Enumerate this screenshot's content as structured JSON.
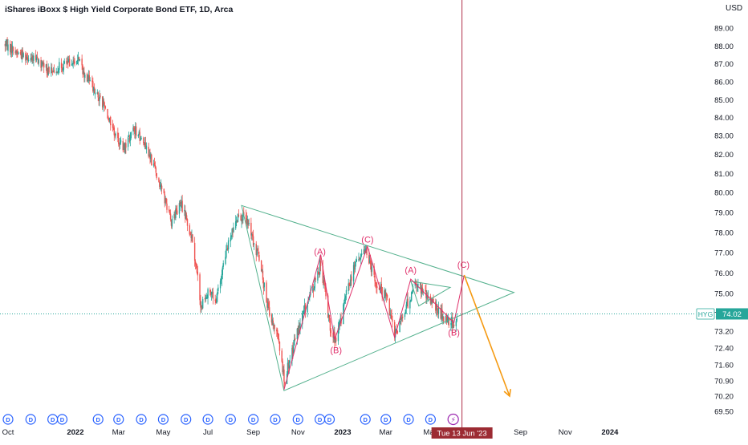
{
  "header": {
    "title": "iShares iBoxx $ High Yield Corporate Bond ETF, 1D, Arca",
    "currency": "USD"
  },
  "colors": {
    "up": "#26a69a",
    "down": "#ef5350",
    "wave_line": "#e0306b",
    "triangle": "#52b08c",
    "crosshair": "#b0304a",
    "projection": "#f59a12",
    "event_badge": "#2962ff"
  },
  "chart_data": {
    "type": "candlestick",
    "symbol": "HYG",
    "title": "iShares iBoxx $ High Yield Corporate Bond ETF, 1D, Arca",
    "ylabel": "USD",
    "ylim": [
      69.2,
      89.8
    ],
    "y_ticks": [
      "89.00",
      "88.00",
      "87.00",
      "86.00",
      "85.00",
      "84.00",
      "83.00",
      "82.00",
      "81.00",
      "80.00",
      "79.00",
      "78.00",
      "77.00",
      "76.00",
      "75.00",
      "74.00",
      "73.20",
      "72.40",
      "71.60",
      "70.90",
      "70.20",
      "69.50"
    ],
    "x_ticks": [
      "Oct",
      "2022",
      "Mar",
      "May",
      "Jul",
      "Sep",
      "Nov",
      "2023",
      "Mar",
      "May",
      "Sep",
      "Nov",
      "2024"
    ],
    "x_tick_dates": [
      "2021-10-01",
      "2022-01-01",
      "2022-03-01",
      "2022-05-01",
      "2022-07-01",
      "2022-09-01",
      "2022-11-01",
      "2023-01-01",
      "2023-03-01",
      "2023-05-01",
      "2023-09-01",
      "2023-11-01",
      "2024-01-01"
    ],
    "price_path": [
      {
        "date": "2021-09-27",
        "price": 88.1
      },
      {
        "date": "2021-10-15",
        "price": 87.6
      },
      {
        "date": "2021-11-05",
        "price": 87.3
      },
      {
        "date": "2021-11-25",
        "price": 86.6
      },
      {
        "date": "2021-12-20",
        "price": 87.0
      },
      {
        "date": "2022-01-03",
        "price": 87.3
      },
      {
        "date": "2022-01-20",
        "price": 86.0
      },
      {
        "date": "2022-02-10",
        "price": 84.6
      },
      {
        "date": "2022-02-25",
        "price": 83.0
      },
      {
        "date": "2022-03-08",
        "price": 82.3
      },
      {
        "date": "2022-03-22",
        "price": 83.4
      },
      {
        "date": "2022-04-05",
        "price": 82.6
      },
      {
        "date": "2022-04-20",
        "price": 81.2
      },
      {
        "date": "2022-05-02",
        "price": 79.8
      },
      {
        "date": "2022-05-12",
        "price": 78.6
      },
      {
        "date": "2022-05-25",
        "price": 79.4
      },
      {
        "date": "2022-06-10",
        "price": 77.7
      },
      {
        "date": "2022-06-22",
        "price": 74.3
      },
      {
        "date": "2022-06-30",
        "price": 75.1
      },
      {
        "date": "2022-07-12",
        "price": 74.6
      },
      {
        "date": "2022-07-28",
        "price": 77.3
      },
      {
        "date": "2022-08-12",
        "price": 79.0
      },
      {
        "date": "2022-08-25",
        "price": 78.4
      },
      {
        "date": "2022-09-08",
        "price": 76.8
      },
      {
        "date": "2022-09-22",
        "price": 74.2
      },
      {
        "date": "2022-10-04",
        "price": 73.1
      },
      {
        "date": "2022-10-13",
        "price": 70.9
      },
      {
        "date": "2022-10-28",
        "price": 72.8
      },
      {
        "date": "2022-11-08",
        "price": 74.0
      },
      {
        "date": "2022-11-22",
        "price": 75.2
      },
      {
        "date": "2022-12-02",
        "price": 76.5
      },
      {
        "date": "2022-12-14",
        "price": 73.6
      },
      {
        "date": "2022-12-23",
        "price": 72.6
      },
      {
        "date": "2023-01-06",
        "price": 75.0
      },
      {
        "date": "2023-01-19",
        "price": 76.5
      },
      {
        "date": "2023-02-02",
        "price": 77.1
      },
      {
        "date": "2023-02-17",
        "price": 75.4
      },
      {
        "date": "2023-03-03",
        "price": 74.8
      },
      {
        "date": "2023-03-13",
        "price": 72.9
      },
      {
        "date": "2023-03-28",
        "price": 74.3
      },
      {
        "date": "2023-04-10",
        "price": 75.5
      },
      {
        "date": "2023-04-24",
        "price": 75.0
      },
      {
        "date": "2023-05-10",
        "price": 74.2
      },
      {
        "date": "2023-05-23",
        "price": 73.8
      },
      {
        "date": "2023-06-01",
        "price": 73.6
      },
      {
        "date": "2023-06-06",
        "price": 73.7
      }
    ],
    "last_price": {
      "symbol": "HYG",
      "value": "74.02"
    },
    "crosshair": {
      "date_label": "Tue 13 Jun '23",
      "date": "2023-06-13"
    },
    "annotations": {
      "wave_labels": [
        {
          "text": "(A)",
          "date": "2022-12-01",
          "price": 76.9
        },
        {
          "text": "(B)",
          "date": "2022-12-23",
          "price": 72.15
        },
        {
          "text": "(C)",
          "date": "2023-02-04",
          "price": 77.5
        },
        {
          "text": "(A)",
          "date": "2023-04-04",
          "price": 76.0
        },
        {
          "text": "(B)",
          "date": "2023-06-02",
          "price": 73.0
        },
        {
          "text": "(C)",
          "date": "2023-06-15",
          "price": 76.25
        }
      ],
      "zigzag": [
        {
          "date": "2022-10-13",
          "price": 70.5
        },
        {
          "date": "2022-12-02",
          "price": 76.9
        },
        {
          "date": "2022-12-21",
          "price": 72.8
        },
        {
          "date": "2023-02-04",
          "price": 77.3
        },
        {
          "date": "2023-03-13",
          "price": 72.9
        },
        {
          "date": "2023-04-04",
          "price": 75.7
        },
        {
          "date": "2023-06-02",
          "price": 73.6
        },
        {
          "date": "2023-06-16",
          "price": 75.9
        }
      ],
      "big_triangle": [
        {
          "date": "2022-08-16",
          "price": 79.35
        },
        {
          "date": "2023-08-23",
          "price": 75.05
        },
        {
          "date": "2022-10-13",
          "price": 70.45
        }
      ],
      "small_triangle": [
        {
          "date": "2023-04-04",
          "price": 75.6
        },
        {
          "date": "2023-05-28",
          "price": 75.3
        },
        {
          "date": "2023-04-15",
          "price": 74.4
        }
      ],
      "projection": [
        {
          "date": "2023-06-16",
          "price": 75.9
        },
        {
          "date": "2023-08-17",
          "price": 70.2
        }
      ]
    },
    "event_markers": {
      "label": "D",
      "dates": [
        "2021-10-01",
        "2021-11-01",
        "2021-12-01",
        "2021-12-14",
        "2022-02-01",
        "2022-03-01",
        "2022-04-01",
        "2022-05-01",
        "2022-06-01",
        "2022-07-01",
        "2022-08-01",
        "2022-09-01",
        "2022-10-01",
        "2022-11-01",
        "2022-12-01",
        "2022-12-14",
        "2023-02-01",
        "2023-03-01",
        "2023-04-01",
        "2023-05-01"
      ],
      "flash_date": "2023-06-01",
      "flash_symbol": "⚡"
    }
  }
}
